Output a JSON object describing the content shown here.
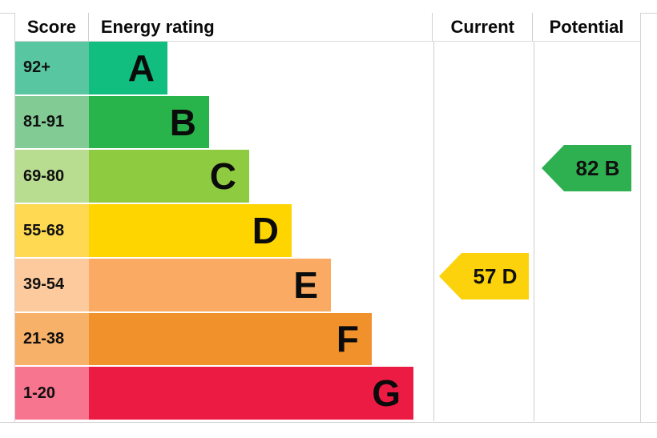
{
  "table": {
    "headers": {
      "score": "Score",
      "energy_rating": "Energy rating",
      "current": "Current",
      "potential": "Potential"
    }
  },
  "bands": [
    {
      "letter": "A",
      "score": "92+",
      "bar_color": "#12bd80",
      "score_bg": "#58c6a1"
    },
    {
      "letter": "B",
      "score": "81-91",
      "bar_color": "#29b44b",
      "score_bg": "#83cb94"
    },
    {
      "letter": "C",
      "score": "69-80",
      "bar_color": "#8fcb40",
      "score_bg": "#b8dc90"
    },
    {
      "letter": "D",
      "score": "55-68",
      "bar_color": "#ffd500",
      "score_bg": "#fed951"
    },
    {
      "letter": "E",
      "score": "39-54",
      "bar_color": "#fbaa64",
      "score_bg": "#fcca9c"
    },
    {
      "letter": "F",
      "score": "21-38",
      "bar_color": "#f0912b",
      "score_bg": "#f8b168"
    },
    {
      "letter": "G",
      "score": "1-20",
      "bar_color": "#ec1b43",
      "score_bg": "#f87590"
    }
  ],
  "current": {
    "label": "57 D",
    "value": 57,
    "band": "D",
    "color": "#fbd20b"
  },
  "potential": {
    "label": "82 B",
    "value": 82,
    "band": "B",
    "color": "#2fb050"
  },
  "chart_data": {
    "type": "bar",
    "title": "Energy rating",
    "columns": [
      "Score",
      "Energy rating",
      "Current",
      "Potential"
    ],
    "categories": [
      "A",
      "B",
      "C",
      "D",
      "E",
      "F",
      "G"
    ],
    "score_ranges": [
      "92+",
      "81-91",
      "69-80",
      "55-68",
      "39-54",
      "21-38",
      "1-20"
    ],
    "bar_relative_widths": [
      1.0,
      1.53,
      2.04,
      2.58,
      3.08,
      3.6,
      4.13
    ],
    "bar_colors": [
      "#12bd80",
      "#29b44b",
      "#8fcb40",
      "#ffd500",
      "#fbaa64",
      "#f0912b",
      "#ec1b43"
    ],
    "markers": [
      {
        "column": "Current",
        "value": 57,
        "band": "D",
        "label": "57 D",
        "color": "#fbd20b"
      },
      {
        "column": "Potential",
        "value": 82,
        "band": "B",
        "label": "82 B",
        "color": "#2fb050"
      }
    ],
    "legend": false,
    "grid": false
  }
}
